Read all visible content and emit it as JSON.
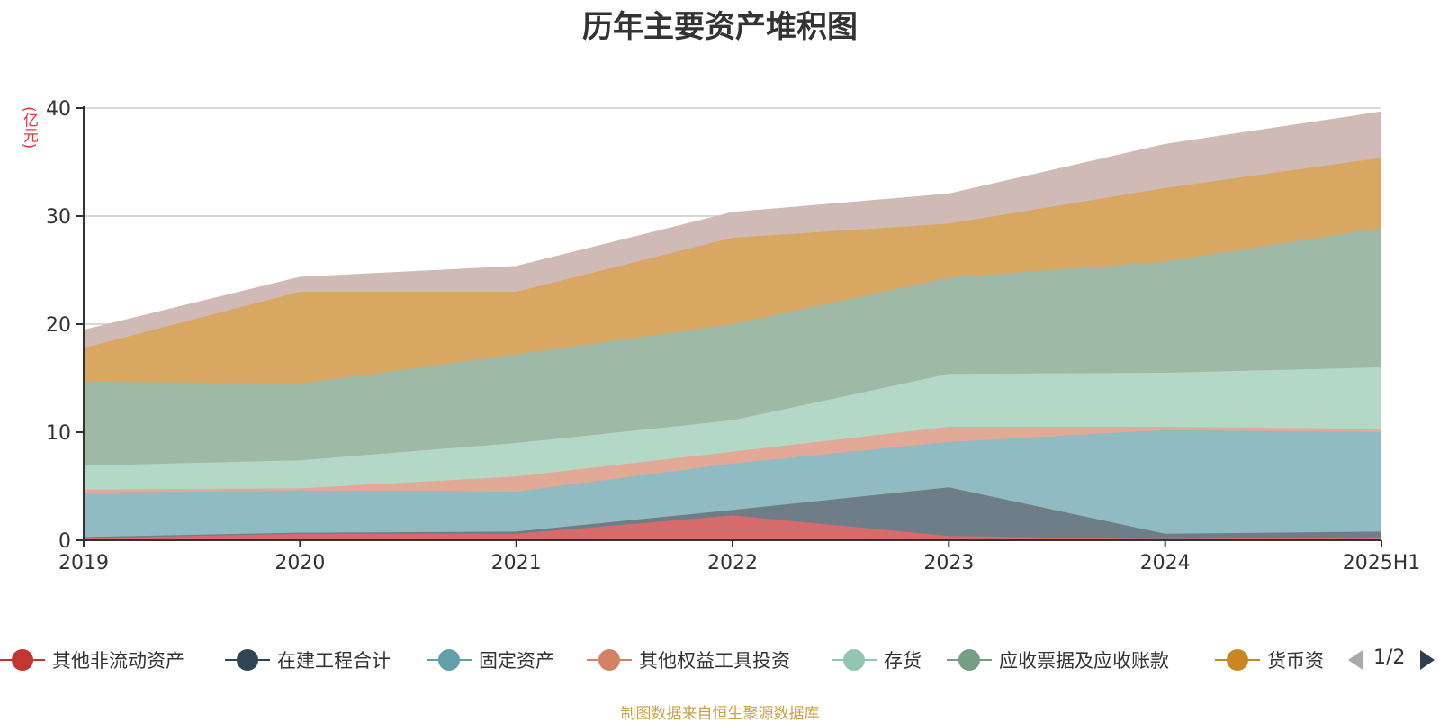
{
  "title": "历年主要资产堆积图",
  "unit_label": "(亿元)",
  "source": "制图数据来自恒生聚源数据库",
  "legend_page": "1/2",
  "chart_data": {
    "type": "area",
    "stacked": true,
    "categories": [
      "2019",
      "2020",
      "2021",
      "2022",
      "2023",
      "2024",
      "2025H1"
    ],
    "ylim": [
      0,
      40
    ],
    "yticks": [
      0,
      10,
      20,
      30,
      40
    ],
    "grid": true,
    "legend_position": "bottom",
    "series": [
      {
        "name": "其他非流动资产",
        "color": "#c23531",
        "fill": "#d56b6b",
        "values": [
          0.2,
          0.6,
          0.6,
          2.3,
          0.4,
          0.1,
          0.3
        ],
        "legend": true
      },
      {
        "name": "在建工程合计",
        "color": "#2f4554",
        "fill": "#6e7d88",
        "values": [
          0.1,
          0.1,
          0.2,
          0.5,
          4.5,
          0.5,
          0.5
        ],
        "legend": true
      },
      {
        "name": "固定资产",
        "color": "#61a0a8",
        "fill": "#90bbc2",
        "values": [
          4.1,
          3.9,
          3.7,
          4.3,
          4.2,
          9.6,
          9.2
        ],
        "legend": true
      },
      {
        "name": "其他权益工具投资",
        "color": "#d48265",
        "fill": "#e2a997",
        "values": [
          0.3,
          0.2,
          1.4,
          1.1,
          1.4,
          0.3,
          0.3
        ],
        "legend": true
      },
      {
        "name": "存货",
        "color": "#91c7ae",
        "fill": "#b3d9c6",
        "values": [
          2.2,
          2.6,
          3.1,
          2.9,
          4.9,
          5.0,
          5.7
        ],
        "legend": true
      },
      {
        "name": "应收票据及应收账款",
        "color": "#749f83",
        "fill": "#9eb9a5",
        "values": [
          7.8,
          7.1,
          8.2,
          8.9,
          8.9,
          10.3,
          12.9
        ],
        "legend": true
      },
      {
        "name": "货币资",
        "color": "#ca8622",
        "fill": "#d8a862",
        "values": [
          3.1,
          8.5,
          5.8,
          8.0,
          5.0,
          6.8,
          6.5
        ],
        "legend": true
      },
      {
        "name": "",
        "color": "#bda29a",
        "fill": "#cfbab5",
        "values": [
          1.6,
          1.3,
          2.3,
          2.3,
          2.7,
          4.0,
          4.2
        ],
        "legend": false
      }
    ]
  }
}
